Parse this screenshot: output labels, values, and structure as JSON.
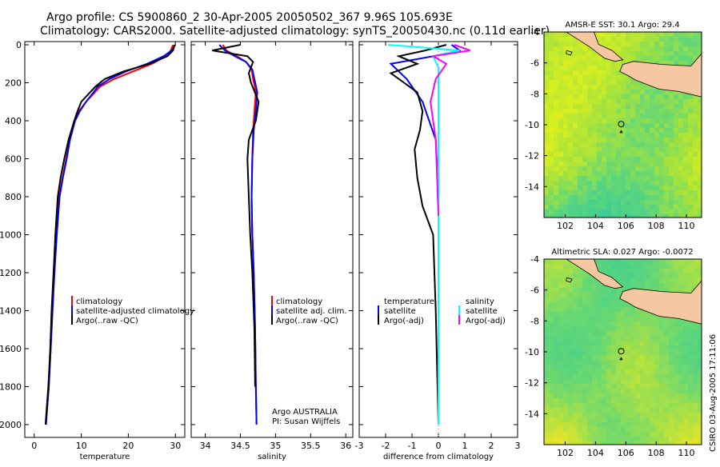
{
  "header": {
    "line1": "Argo profile: CS 5900860_2 30-Apr-2005 20050502_367 9.96S 105.693E",
    "line2": "Climatology: CARS2000. Satellite-adjusted climatology: synTS_20050430.nc (0.11d earlier)"
  },
  "footer": {
    "credit": "CSIRO 03-Aug-2005 17:11:06"
  },
  "colors": {
    "climatology": "#ff0000",
    "satellite": "#0000ff",
    "argo": "#000000",
    "salinity_satellite": "#00ffff",
    "salinity_argo": "#ff00ff",
    "land": "#f7c7a1"
  },
  "chart_data": [
    {
      "type": "line",
      "title": "",
      "xlabel": "temperature",
      "ylabel": "",
      "xlim": [
        -2,
        32
      ],
      "ylim": [
        2050,
        0
      ],
      "xticks": [
        0,
        10,
        20,
        30
      ],
      "yticks": [
        0,
        200,
        400,
        600,
        800,
        1000,
        1200,
        1400,
        1600,
        1800,
        2000
      ],
      "legend": [
        "climatology",
        "satellite-adjusted climatology",
        "Argo(..raw -QC)"
      ],
      "series": [
        {
          "name": "climatology",
          "color": "#ff0000",
          "x": [
            29.5,
            29.0,
            28.0,
            25.0,
            21.0,
            17.0,
            14.0,
            12.5,
            11.0,
            9.5,
            8.5,
            7.5,
            6.8,
            6.0,
            5.3,
            4.7,
            4.2,
            3.8,
            3.5,
            3.1,
            2.8,
            2.5
          ],
          "y": [
            0,
            30,
            60,
            100,
            140,
            180,
            220,
            260,
            300,
            350,
            400,
            500,
            600,
            700,
            800,
            1000,
            1200,
            1400,
            1600,
            1800,
            1900,
            2000
          ]
        },
        {
          "name": "satellite-adjusted climatology",
          "color": "#0000ff",
          "x": [
            30.0,
            29.2,
            27.5,
            24.0,
            19.5,
            16.0,
            13.5,
            12.3,
            11.0,
            9.7,
            8.7,
            7.6,
            6.9,
            6.1,
            5.4,
            4.8,
            4.3,
            3.9,
            3.5,
            3.1,
            2.8,
            2.5
          ],
          "y": [
            0,
            30,
            60,
            100,
            140,
            180,
            220,
            260,
            300,
            350,
            400,
            500,
            600,
            700,
            800,
            1000,
            1200,
            1400,
            1600,
            1800,
            1900,
            2000
          ]
        },
        {
          "name": "Argo(..raw -QC)",
          "color": "#000000",
          "x": [
            29.8,
            29.5,
            28.3,
            24.5,
            19.0,
            15.0,
            13.0,
            11.5,
            10.0,
            9.2,
            8.5,
            7.3,
            6.4,
            5.6,
            5.0,
            4.5,
            4.1,
            3.7,
            3.4,
            3.0,
            2.7,
            2.4
          ],
          "y": [
            0,
            30,
            60,
            100,
            140,
            180,
            220,
            260,
            300,
            350,
            400,
            500,
            600,
            700,
            800,
            1000,
            1200,
            1400,
            1600,
            1800,
            1900,
            2000
          ]
        }
      ]
    },
    {
      "type": "line",
      "title": "",
      "xlabel": "salinity",
      "ylabel": "",
      "xlim": [
        33.8,
        36.1
      ],
      "ylim": [
        2050,
        0
      ],
      "xticks": [
        34,
        34.5,
        35,
        35.5,
        36
      ],
      "yticks": [
        0,
        200,
        400,
        600,
        800,
        1000,
        1200,
        1400,
        1600,
        1800,
        2000
      ],
      "legend": [
        "climatology",
        "satellite adj. clim.",
        "Argo(..raw -QC)"
      ],
      "annotations": [
        "Argo AUSTRALIA",
        "PI: Susan Wijffels"
      ],
      "series": [
        {
          "name": "climatology",
          "color": "#ff0000",
          "x": [
            34.25,
            34.3,
            34.45,
            34.58,
            34.66,
            34.68,
            34.72,
            34.7,
            34.68,
            34.67,
            34.66,
            34.67,
            34.69,
            34.71,
            34.72,
            34.73
          ],
          "y": [
            0,
            30,
            60,
            90,
            130,
            180,
            250,
            350,
            450,
            600,
            800,
            1000,
            1200,
            1500,
            1800,
            2000
          ]
        },
        {
          "name": "satellite adj. clim.",
          "color": "#0000ff",
          "x": [
            34.2,
            34.28,
            34.42,
            34.58,
            34.67,
            34.7,
            34.74,
            34.72,
            34.69,
            34.67,
            34.66,
            34.67,
            34.69,
            34.71,
            34.72,
            34.73
          ],
          "y": [
            0,
            30,
            60,
            90,
            130,
            180,
            250,
            350,
            450,
            600,
            800,
            1000,
            1200,
            1500,
            1800,
            2000
          ]
        },
        {
          "name": "Argo(..raw -QC)",
          "color": "#000000",
          "x": [
            34.5,
            34.1,
            34.6,
            34.68,
            34.62,
            34.65,
            34.76,
            34.72,
            34.62,
            34.6,
            34.62,
            34.64,
            34.67,
            34.7,
            34.71
          ],
          "y": [
            0,
            30,
            60,
            90,
            150,
            200,
            300,
            400,
            500,
            600,
            800,
            1000,
            1200,
            1500,
            1800
          ]
        }
      ]
    },
    {
      "type": "line",
      "title": "",
      "xlabel": "difference from climatology",
      "ylabel": "",
      "xlim": [
        -3,
        3
      ],
      "ylim": [
        2050,
        0
      ],
      "xticks": [
        -3,
        -2,
        -1,
        0,
        1,
        2,
        3
      ],
      "yticks": [
        0,
        200,
        400,
        600,
        800,
        1000,
        1200,
        1400,
        1600,
        1800,
        2000
      ],
      "legend": [
        "temperature",
        "satellite",
        "Argo(-adj)",
        "salinity",
        "satellite",
        "Argo(-adj)"
      ],
      "series": [
        {
          "name": "temperature satellite",
          "color": "#0000ff",
          "x": [
            0.5,
            0.8,
            -0.2,
            -1.8,
            -1.2,
            -0.6,
            -0.1,
            0.0,
            0.0,
            0.0
          ],
          "y": [
            0,
            30,
            60,
            100,
            180,
            300,
            500,
            800,
            1200,
            2000
          ]
        },
        {
          "name": "temperature Argo(-adj)",
          "color": "#000000",
          "x": [
            0.3,
            -0.5,
            -1.5,
            -0.8,
            -1.8,
            -0.8,
            -0.6,
            -0.7,
            -0.9,
            -0.8,
            -0.6,
            -0.2,
            -0.1,
            0.0
          ],
          "y": [
            0,
            30,
            60,
            100,
            150,
            250,
            350,
            450,
            550,
            700,
            850,
            1000,
            1400,
            2000
          ]
        },
        {
          "name": "salinity satellite",
          "color": "#00ffff",
          "x": [
            -1.9,
            0.8,
            -0.2,
            0.0,
            0.0,
            0.0
          ],
          "y": [
            0,
            30,
            60,
            120,
            400,
            2000
          ]
        },
        {
          "name": "salinity Argo(-adj)",
          "color": "#ff00ff",
          "x": [
            0.6,
            1.2,
            -0.2,
            0.3,
            -0.1,
            -0.3,
            -0.1,
            0.0
          ],
          "y": [
            0,
            30,
            60,
            100,
            180,
            300,
            500,
            900
          ]
        }
      ]
    },
    {
      "type": "heatmap",
      "title": "AMSR-E SST: 30.1 Argo: 29.4",
      "xlim": [
        100.6,
        111
      ],
      "ylim": [
        -16,
        -4
      ],
      "xticks": [
        102,
        104,
        106,
        108,
        110
      ],
      "yticks": [
        -4,
        -6,
        -8,
        -10,
        -12,
        -14
      ],
      "marker": {
        "lon": 105.693,
        "lat": -9.96
      }
    },
    {
      "type": "heatmap",
      "title": "Altimetric SLA: 0.027 Argo: -0.0072",
      "xlim": [
        100.6,
        111
      ],
      "ylim": [
        -16,
        -4
      ],
      "xticks": [
        102,
        104,
        106,
        108,
        110
      ],
      "yticks": [
        -4,
        -6,
        -8,
        -10,
        -12,
        -14
      ],
      "marker": {
        "lon": 105.693,
        "lat": -9.96
      }
    }
  ]
}
